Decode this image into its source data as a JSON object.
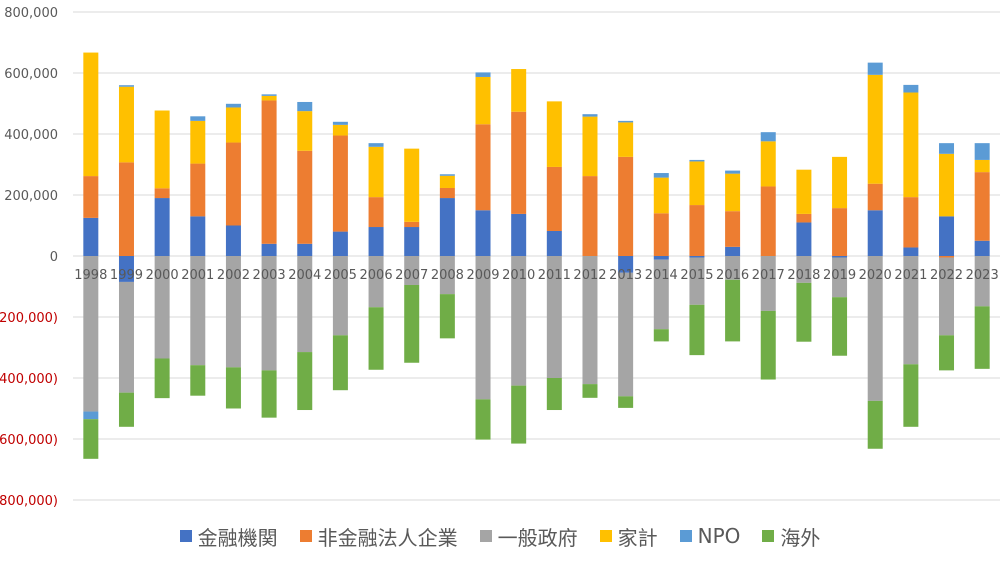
{
  "chart_data": {
    "type": "bar",
    "stacked": true,
    "categories": [
      "1998",
      "1999",
      "2000",
      "2001",
      "2002",
      "2003",
      "2004",
      "2005",
      "2006",
      "2007",
      "2008",
      "2009",
      "2010",
      "2011",
      "2012",
      "2013",
      "2014",
      "2015",
      "2016",
      "2017",
      "2018",
      "2019",
      "2020",
      "2021",
      "2022",
      "2023"
    ],
    "ylim": [
      -800000,
      800000
    ],
    "y_ticks": [
      800000,
      600000,
      400000,
      200000,
      0,
      -200000,
      -400000,
      -600000,
      -800000
    ],
    "y_tick_labels": [
      "800,000",
      "600,000",
      "400,000",
      "200,000",
      "0",
      "(200,000)",
      "(400,000)",
      "(600,000)",
      "(800,000)"
    ],
    "negative_tick_color": "#C00000",
    "grid": true,
    "legend_position": "bottom",
    "series": [
      {
        "name": "金融機関",
        "color": "#4472C4",
        "values": [
          125000,
          -85000,
          190000,
          130000,
          100000,
          40000,
          40000,
          80000,
          95000,
          95000,
          190000,
          150000,
          138000,
          82000,
          0,
          -55000,
          -12000,
          -5000,
          30000,
          0,
          110000,
          -5000,
          150000,
          28000,
          130000,
          50000
        ]
      },
      {
        "name": "非金融法人企業",
        "color": "#ED7D31",
        "values": [
          137000,
          307000,
          32000,
          173000,
          272000,
          470000,
          305000,
          315000,
          98000,
          17000,
          33000,
          282000,
          335000,
          210000,
          262000,
          325000,
          140000,
          167000,
          117000,
          228000,
          28000,
          157000,
          87000,
          165000,
          -5000,
          225000
        ]
      },
      {
        "name": "一般政府",
        "color": "#A5A5A5",
        "values": [
          -510000,
          -363000,
          -336000,
          -358000,
          -365000,
          -375000,
          -315000,
          -260000,
          -168000,
          -95000,
          -125000,
          -470000,
          -425000,
          -400000,
          -420000,
          -405000,
          -228000,
          -155000,
          -78000,
          -180000,
          -88000,
          -130000,
          -475000,
          -355000,
          -255000,
          -165000
        ]
      },
      {
        "name": "家計",
        "color": "#FFC000",
        "values": [
          405000,
          248000,
          255000,
          140000,
          115000,
          15000,
          130000,
          35000,
          165000,
          240000,
          40000,
          155000,
          140000,
          215000,
          195000,
          113000,
          117000,
          143000,
          123000,
          148000,
          145000,
          168000,
          357000,
          343000,
          205000,
          40000
        ]
      },
      {
        "name": "NPO",
        "color": "#5B9BD5",
        "values": [
          -25000,
          5000,
          0,
          15000,
          12000,
          5000,
          30000,
          10000,
          12000,
          0,
          5000,
          15000,
          0,
          0,
          8000,
          5000,
          15000,
          5000,
          10000,
          30000,
          0,
          0,
          40000,
          25000,
          35000,
          55000
        ]
      },
      {
        "name": "海外",
        "color": "#70AD47",
        "values": [
          -130000,
          -112000,
          -130000,
          -100000,
          -135000,
          -155000,
          -190000,
          -180000,
          -205000,
          -255000,
          -145000,
          -132000,
          -190000,
          -105000,
          -45000,
          -38000,
          -40000,
          -165000,
          -202000,
          -225000,
          -193000,
          -192000,
          -157000,
          -205000,
          -115000,
          -205000
        ]
      }
    ]
  }
}
